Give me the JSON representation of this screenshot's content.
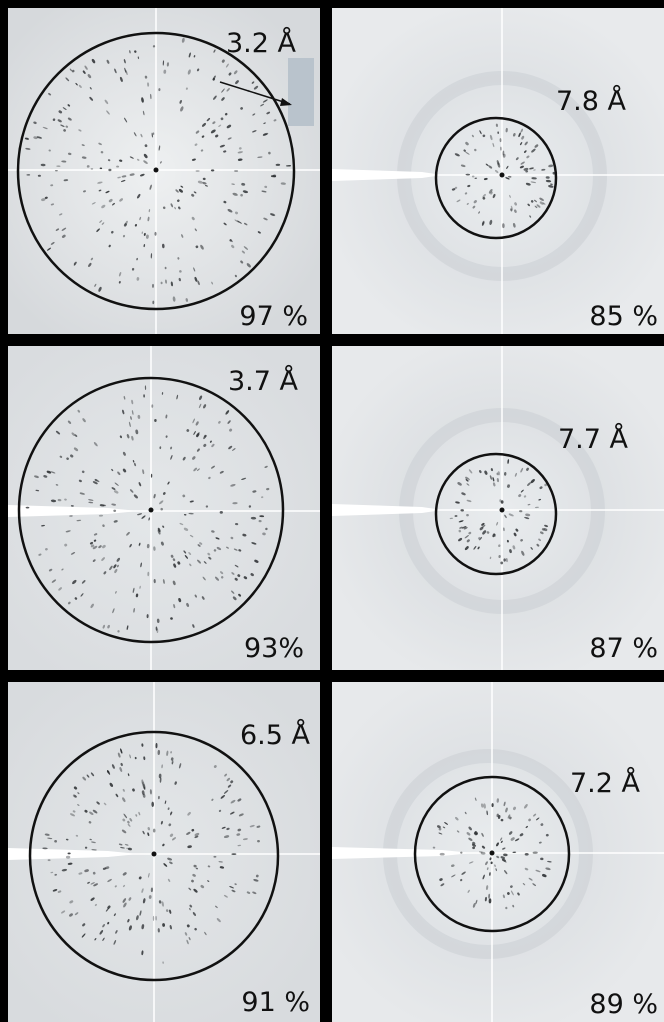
{
  "panels": [
    {
      "resolution": "3.2 Å",
      "completeness": "97 %"
    },
    {
      "resolution": "7.8 Å",
      "completeness": "85 %"
    },
    {
      "resolution": "3.7 Å",
      "completeness": "93%"
    },
    {
      "resolution": "7.7 Å",
      "completeness": "87 %"
    },
    {
      "resolution": "6.5 Å",
      "completeness": "91 %"
    },
    {
      "resolution": "7.2 Å",
      "completeness": "89 %"
    }
  ],
  "colors": {
    "background": "#e4e6e8",
    "ring": "#111111",
    "divider": "#000000",
    "inset": "#b9c3cc"
  }
}
